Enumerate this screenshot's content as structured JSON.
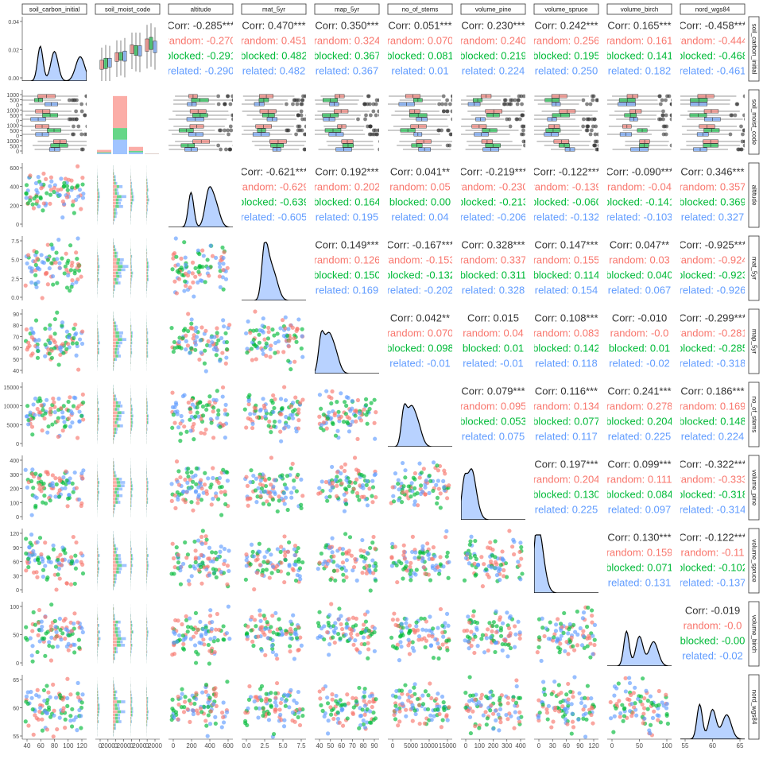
{
  "chart_data": {
    "type": "pairs",
    "variables": [
      "soil_carbon_initial",
      "soil_moist_code",
      "altitude",
      "mat_5yr",
      "map_5yr",
      "no_of_stems",
      "volume_pine",
      "volume_spruce",
      "volume_birch",
      "nord_wgs84"
    ],
    "groups": [
      {
        "name": "random",
        "color": "#F8766D"
      },
      {
        "name": "blocked",
        "color": "#00BA38"
      },
      {
        "name": "related",
        "color": "#619CFF"
      }
    ],
    "total_color": "#333333",
    "row_ticks": [
      [
        "0.00",
        "0.02",
        "0.04"
      ],
      [
        "0",
        "500",
        "1000",
        "0",
        "500",
        "1000",
        "0",
        "500",
        "1000",
        "0",
        "500",
        "1000"
      ],
      [
        "0",
        "200",
        "400",
        "600"
      ],
      [
        "0.0",
        "2.5",
        "5.0",
        "7.5"
      ],
      [
        "40",
        "50",
        "60",
        "70",
        "80",
        "90"
      ],
      [
        "0",
        "5000",
        "10000",
        "15000"
      ],
      [
        "0",
        "100",
        "200",
        "300",
        "400"
      ],
      [
        "0",
        "30",
        "60",
        "90",
        "120"
      ],
      [
        "0",
        "50",
        "100"
      ],
      [
        "55",
        "60",
        "65"
      ]
    ],
    "col_ticks": [
      [
        "40",
        "60",
        "80",
        "100",
        "120"
      ],
      [
        "0",
        "2000",
        "0",
        "2000",
        "0",
        "2000",
        "0",
        "2000"
      ],
      [
        "0",
        "200",
        "400",
        "600"
      ],
      [
        "0.0",
        "2.5",
        "5.0",
        "7.5"
      ],
      [
        "40",
        "50",
        "60",
        "70",
        "80",
        "90"
      ],
      [
        "0",
        "5000",
        "10000",
        "15000"
      ],
      [
        "0",
        "100",
        "200",
        "300",
        "400"
      ],
      [
        "0",
        "30",
        "60",
        "90",
        "120"
      ],
      [
        "0",
        "50",
        "100"
      ],
      [
        "55",
        "60",
        "65"
      ]
    ],
    "correlations": [
      {
        "row": "soil_carbon_initial",
        "col": "altitude",
        "total": "Corr: -0.285***",
        "random": "random: -0.270",
        "blocked": "blocked: -0.291",
        "related": "related: -0.290"
      },
      {
        "row": "soil_carbon_initial",
        "col": "mat_5yr",
        "total": "Corr: 0.470***",
        "random": "random: 0.451",
        "blocked": "blocked: 0.482",
        "related": "related: 0.482"
      },
      {
        "row": "soil_carbon_initial",
        "col": "map_5yr",
        "total": "Corr: 0.350***",
        "random": "random: 0.324",
        "blocked": "blocked: 0.367",
        "related": "related: 0.367"
      },
      {
        "row": "soil_carbon_initial",
        "col": "no_of_stems",
        "total": "Corr: 0.051***",
        "random": "random: 0.070",
        "blocked": "blocked: 0.081",
        "related": "related: 0.01"
      },
      {
        "row": "soil_carbon_initial",
        "col": "volume_pine",
        "total": "Corr: 0.230***",
        "random": "random: 0.240",
        "blocked": "blocked: 0.219",
        "related": "related: 0.224"
      },
      {
        "row": "soil_carbon_initial",
        "col": "volume_spruce",
        "total": "Corr: 0.242***",
        "random": "random: 0.256",
        "blocked": "blocked: 0.195",
        "related": "related: 0.250"
      },
      {
        "row": "soil_carbon_initial",
        "col": "volume_birch",
        "total": "Corr: 0.165***",
        "random": "random: 0.161",
        "blocked": "blocked: 0.141",
        "related": "related: 0.182"
      },
      {
        "row": "soil_carbon_initial",
        "col": "nord_wgs84",
        "total": "Corr: -0.458***",
        "random": "random: -0.444",
        "blocked": "blocked: -0.468",
        "related": "related: -0.461"
      },
      {
        "row": "altitude",
        "col": "mat_5yr",
        "total": "Corr: -0.621***",
        "random": "random: -0.629",
        "blocked": "blocked: -0.639",
        "related": "related: -0.605"
      },
      {
        "row": "altitude",
        "col": "map_5yr",
        "total": "Corr: 0.192***",
        "random": "random: 0.202",
        "blocked": "blocked: 0.164",
        "related": "related: 0.195"
      },
      {
        "row": "altitude",
        "col": "no_of_stems",
        "total": "Corr: 0.041**",
        "random": "random: 0.05",
        "blocked": "blocked: 0.00",
        "related": "related: 0.04"
      },
      {
        "row": "altitude",
        "col": "volume_pine",
        "total": "Corr: -0.219***",
        "random": "random: -0.230",
        "blocked": "blocked: -0.213",
        "related": "related: -0.206"
      },
      {
        "row": "altitude",
        "col": "volume_spruce",
        "total": "Corr: -0.122***",
        "random": "random: -0.139",
        "blocked": "blocked: -0.060",
        "related": "related: -0.132"
      },
      {
        "row": "altitude",
        "col": "volume_birch",
        "total": "Corr: -0.090***",
        "random": "random: -0.04",
        "blocked": "blocked: -0.141",
        "related": "related: -0.103"
      },
      {
        "row": "altitude",
        "col": "nord_wgs84",
        "total": "Corr: 0.346***",
        "random": "random: 0.357",
        "blocked": "blocked: 0.369",
        "related": "related: 0.327"
      },
      {
        "row": "mat_5yr",
        "col": "map_5yr",
        "total": "Corr: 0.149***",
        "random": "random: 0.126",
        "blocked": "blocked: 0.150",
        "related": "related: 0.169"
      },
      {
        "row": "mat_5yr",
        "col": "no_of_stems",
        "total": "Corr: -0.167***",
        "random": "random: -0.153",
        "blocked": "blocked: -0.132",
        "related": "related: -0.202"
      },
      {
        "row": "mat_5yr",
        "col": "volume_pine",
        "total": "Corr: 0.328***",
        "random": "random: 0.337",
        "blocked": "blocked: 0.311",
        "related": "related: 0.328"
      },
      {
        "row": "mat_5yr",
        "col": "volume_spruce",
        "total": "Corr: 0.147***",
        "random": "random: 0.155",
        "blocked": "blocked: 0.114",
        "related": "related: 0.154"
      },
      {
        "row": "mat_5yr",
        "col": "volume_birch",
        "total": "Corr: 0.047**",
        "random": "random: 0.03",
        "blocked": "blocked: 0.040",
        "related": "related: 0.067"
      },
      {
        "row": "mat_5yr",
        "col": "nord_wgs84",
        "total": "Corr: -0.925***",
        "random": "random: -0.924",
        "blocked": "blocked: -0.923",
        "related": "related: -0.926"
      },
      {
        "row": "map_5yr",
        "col": "no_of_stems",
        "total": "Corr: 0.042**",
        "random": "random: 0.070",
        "blocked": "blocked: 0.098",
        "related": "related: -0.01"
      },
      {
        "row": "map_5yr",
        "col": "volume_pine",
        "total": "Corr: 0.015",
        "random": "random: 0.04",
        "blocked": "blocked: 0.01",
        "related": "related: -0.01"
      },
      {
        "row": "map_5yr",
        "col": "volume_spruce",
        "total": "Corr: 0.108***",
        "random": "random: 0.083",
        "blocked": "blocked: 0.142",
        "related": "related: 0.118"
      },
      {
        "row": "map_5yr",
        "col": "volume_birch",
        "total": "Corr: -0.010",
        "random": "random: -0.0",
        "blocked": "blocked: 0.01",
        "related": "related: -0.02"
      },
      {
        "row": "map_5yr",
        "col": "nord_wgs84",
        "total": "Corr: -0.299***",
        "random": "random: -0.281",
        "blocked": "blocked: -0.285",
        "related": "related: -0.318"
      },
      {
        "row": "no_of_stems",
        "col": "volume_pine",
        "total": "Corr: 0.079***",
        "random": "random: 0.095",
        "blocked": "blocked: 0.053",
        "related": "related: 0.075"
      },
      {
        "row": "no_of_stems",
        "col": "volume_spruce",
        "total": "Corr: 0.116***",
        "random": "random: 0.134",
        "blocked": "blocked: 0.077",
        "related": "related: 0.117"
      },
      {
        "row": "no_of_stems",
        "col": "volume_birch",
        "total": "Corr: 0.241***",
        "random": "random: 0.278",
        "blocked": "blocked: 0.204",
        "related": "related: 0.225"
      },
      {
        "row": "no_of_stems",
        "col": "nord_wgs84",
        "total": "Corr: 0.186***",
        "random": "random: 0.169",
        "blocked": "blocked: 0.148",
        "related": "related: 0.224"
      },
      {
        "row": "volume_pine",
        "col": "volume_spruce",
        "total": "Corr: 0.197***",
        "random": "random: 0.204",
        "blocked": "blocked: 0.130",
        "related": "related: 0.225"
      },
      {
        "row": "volume_pine",
        "col": "volume_birch",
        "total": "Corr: 0.099***",
        "random": "random: 0.111",
        "blocked": "blocked: 0.084",
        "related": "related: 0.097"
      },
      {
        "row": "volume_pine",
        "col": "nord_wgs84",
        "total": "Corr: -0.322***",
        "random": "random: -0.333",
        "blocked": "blocked: -0.318",
        "related": "related: -0.314"
      },
      {
        "row": "volume_spruce",
        "col": "volume_birch",
        "total": "Corr: 0.130***",
        "random": "random: 0.159",
        "blocked": "blocked: 0.071",
        "related": "related: 0.131"
      },
      {
        "row": "volume_spruce",
        "col": "nord_wgs84",
        "total": "Corr: -0.122***",
        "random": "random: -0.11",
        "blocked": "blocked: -0.102",
        "related": "related: -0.137"
      },
      {
        "row": "volume_birch",
        "col": "nord_wgs84",
        "total": "Corr: -0.019",
        "random": "random: -0.0",
        "blocked": "blocked: -0.00",
        "related": "related: -0.02"
      }
    ]
  }
}
